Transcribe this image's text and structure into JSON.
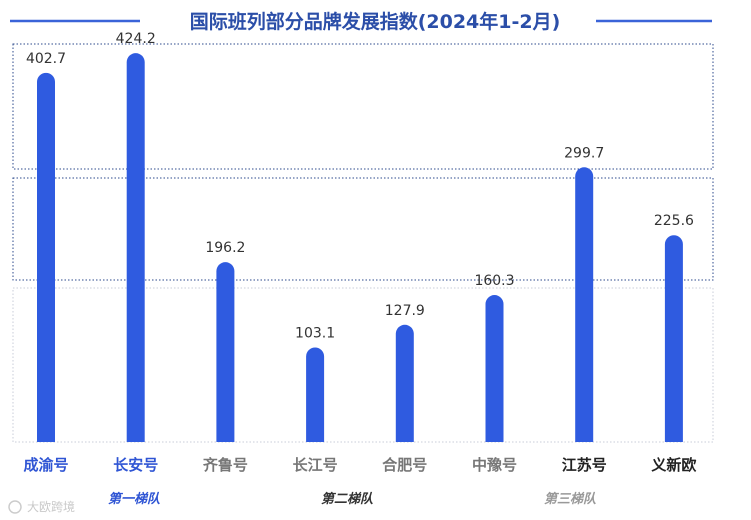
{
  "chart_data": {
    "type": "bar",
    "title": "国际班列部分品牌发展指数(2024年1-2月)",
    "categories": [
      "成渝号",
      "长安号",
      "齐鲁号",
      "长江号",
      "合肥号",
      "中豫号",
      "江苏号",
      "义新欧"
    ],
    "values": [
      402.7,
      424.2,
      196.2,
      103.1,
      127.9,
      160.3,
      299.7,
      225.6
    ],
    "value_labels": [
      "402.7",
      "424.2",
      "196.2",
      "103.1",
      "127.9",
      "160.3",
      "299.7",
      "225.6"
    ],
    "category_colors": [
      "#2f55d4",
      "#2f55d4",
      "#777777",
      "#777777",
      "#777777",
      "#777777",
      "#222222",
      "#222222"
    ],
    "tiers": [
      {
        "label": "第一梯队",
        "color": "#2f55d4"
      },
      {
        "label": "第二梯队",
        "color": "#333333"
      },
      {
        "label": "第三梯队",
        "color": "#999999"
      }
    ],
    "ylim": [
      0,
      480
    ],
    "grid": false,
    "bar_color": "#2f5be0"
  },
  "watermark": "大欧跨境"
}
